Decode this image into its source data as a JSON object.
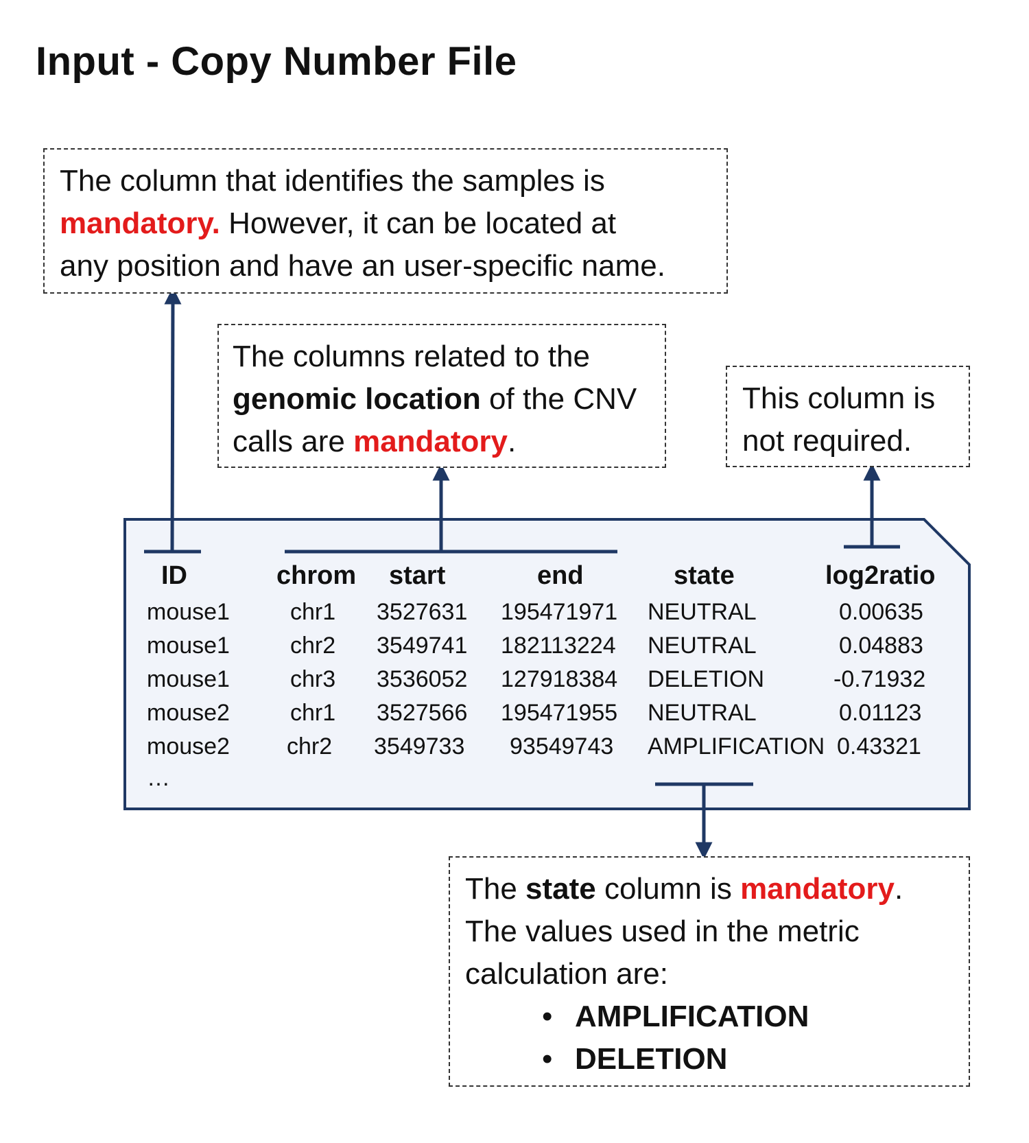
{
  "title": "Input - Copy Number File",
  "notes": {
    "id_note": {
      "line1": "The column that identifies the samples is",
      "line2_red": "mandatory.",
      "line2_rest": " However, it can be located at",
      "line3": "any position and have an user-specific name."
    },
    "location_note": {
      "line1": "The columns related to the",
      "line2_bold": "genomic location",
      "line2_rest": " of the CNV",
      "line3_pre": "calls are ",
      "line3_red": "mandatory",
      "line3_post": "."
    },
    "log_note": {
      "line1": "This column is",
      "line2": "not required."
    },
    "state_note": {
      "line1_pre": "The ",
      "line1_bold": "state",
      "line1_mid": " column is ",
      "line1_red": "mandatory",
      "line1_post": ".",
      "line2": "The values used in the metric",
      "line3": "calculation are:",
      "bullet_symbol": "•",
      "bullets": [
        "AMPLIFICATION",
        "DELETION"
      ]
    }
  },
  "table": {
    "headers": [
      "ID",
      "chrom",
      "start",
      "end",
      "state",
      "log2ratio"
    ],
    "rows": [
      [
        "mouse1",
        "chr1",
        "3527631",
        "195471971",
        "NEUTRAL",
        "0.00635"
      ],
      [
        "mouse1",
        "chr2",
        "3549741",
        "182113224",
        "NEUTRAL",
        "0.04883"
      ],
      [
        "mouse1",
        "chr3",
        "3536052",
        "127918384",
        "DELETION",
        "-0.71932"
      ],
      [
        "mouse2",
        "chr1",
        "3527566",
        "195471955",
        "NEUTRAL",
        "0.01123"
      ],
      [
        "mouse2",
        "chr2",
        "3549733",
        "93549743",
        "AMPLIFICATION",
        "0.43321"
      ]
    ],
    "ellipsis": "…"
  },
  "colors": {
    "red": "#e31b1b",
    "arrow": "#1f3864",
    "file_fill": "#f1f4fa"
  }
}
